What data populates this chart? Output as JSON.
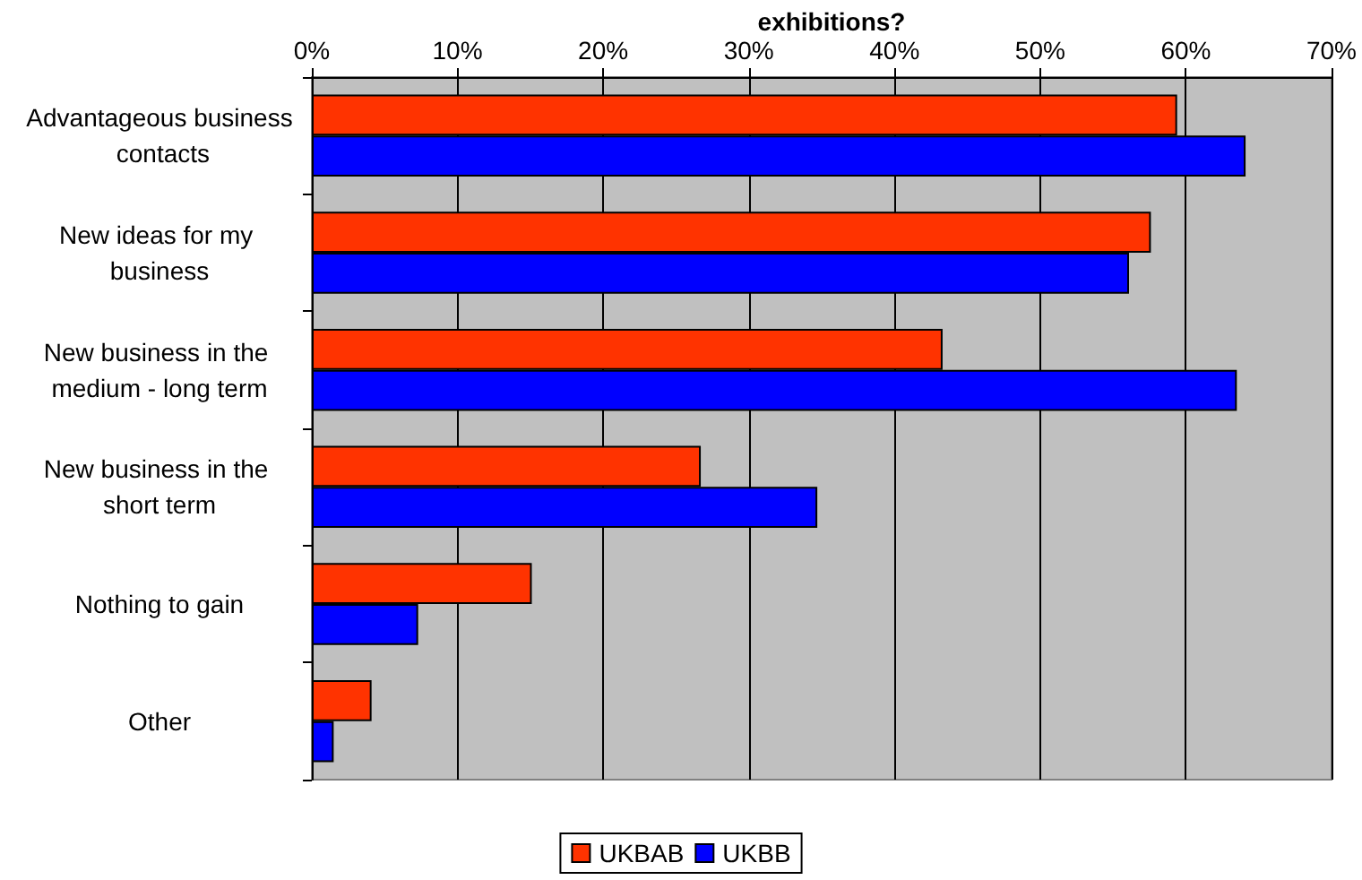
{
  "chart_data": {
    "type": "bar",
    "orientation": "horizontal",
    "title": "exhibitions?",
    "categories": [
      "Advantageous business contacts",
      "New ideas for my business",
      "New business in the medium - long term",
      "New business in the short term",
      "Nothing to gain",
      "Other"
    ],
    "series": [
      {
        "name": "UKBAB",
        "color": "#ff3300",
        "values": [
          59.4,
          57.6,
          43.3,
          26.7,
          15.1,
          4.1
        ]
      },
      {
        "name": "UKBB",
        "color": "#0000ff",
        "values": [
          64.1,
          56.1,
          63.5,
          34.7,
          7.3,
          1.5
        ]
      }
    ],
    "xlim": [
      0,
      70
    ],
    "xticks": [
      {
        "value": 0,
        "label": "0%"
      },
      {
        "value": 10,
        "label": "10%"
      },
      {
        "value": 20,
        "label": "20%"
      },
      {
        "value": 30,
        "label": "30%"
      },
      {
        "value": 40,
        "label": "40%"
      },
      {
        "value": 50,
        "label": "50%"
      },
      {
        "value": 60,
        "label": "60%"
      },
      {
        "value": 70,
        "label": "70%"
      }
    ],
    "grid": "x",
    "legend": "bottom"
  }
}
